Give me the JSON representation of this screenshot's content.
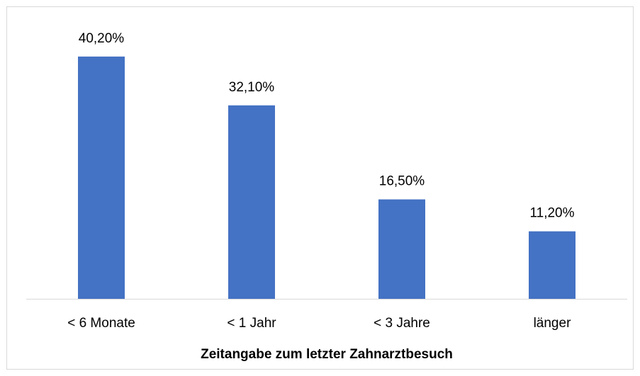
{
  "chart_data": {
    "type": "bar",
    "x_label": "Zeitangabe zum letzter Zahnarztbesuch",
    "categories": [
      "< 6 Monate",
      "< 1 Jahr",
      "< 3 Jahre",
      "länger"
    ],
    "values": [
      40.2,
      32.1,
      16.5,
      11.2
    ],
    "value_labels": [
      "40,20%",
      "32,10%",
      "16,50%",
      "11,20%"
    ],
    "color": "#4472c4",
    "ylim": [
      0,
      45
    ]
  }
}
